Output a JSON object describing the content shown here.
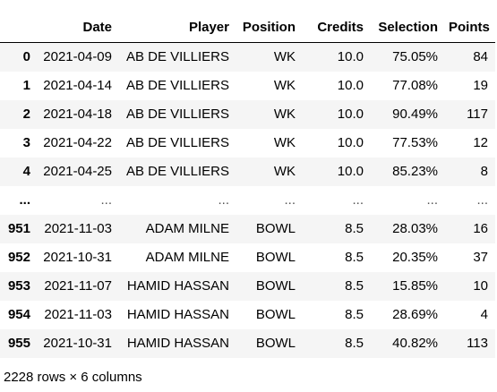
{
  "columns": [
    "",
    "Date",
    "Player",
    "Position",
    "Credits",
    "Selection",
    "Points"
  ],
  "rows": [
    [
      "0",
      "2021-04-09",
      "AB DE VILLIERS",
      "WK",
      "10.0",
      "75.05%",
      "84"
    ],
    [
      "1",
      "2021-04-14",
      "AB DE VILLIERS",
      "WK",
      "10.0",
      "77.08%",
      "19"
    ],
    [
      "2",
      "2021-04-18",
      "AB DE VILLIERS",
      "WK",
      "10.0",
      "90.49%",
      "117"
    ],
    [
      "3",
      "2021-04-22",
      "AB DE VILLIERS",
      "WK",
      "10.0",
      "77.53%",
      "12"
    ],
    [
      "4",
      "2021-04-25",
      "AB DE VILLIERS",
      "WK",
      "10.0",
      "85.23%",
      "8"
    ],
    [
      "...",
      "...",
      "...",
      "...",
      "...",
      "...",
      "..."
    ],
    [
      "951",
      "2021-11-03",
      "ADAM MILNE",
      "BOWL",
      "8.5",
      "28.03%",
      "16"
    ],
    [
      "952",
      "2021-10-31",
      "ADAM MILNE",
      "BOWL",
      "8.5",
      "20.35%",
      "37"
    ],
    [
      "953",
      "2021-11-07",
      "HAMID HASSAN",
      "BOWL",
      "8.5",
      "15.85%",
      "10"
    ],
    [
      "954",
      "2021-11-03",
      "HAMID HASSAN",
      "BOWL",
      "8.5",
      "28.69%",
      "4"
    ],
    [
      "955",
      "2021-10-31",
      "HAMID HASSAN",
      "BOWL",
      "8.5",
      "40.82%",
      "113"
    ]
  ],
  "footer": "2228 rows × 6 columns",
  "colors": {
    "stripe": "#f5f5f5",
    "background": "#ffffff",
    "header_rule": "#000000"
  }
}
